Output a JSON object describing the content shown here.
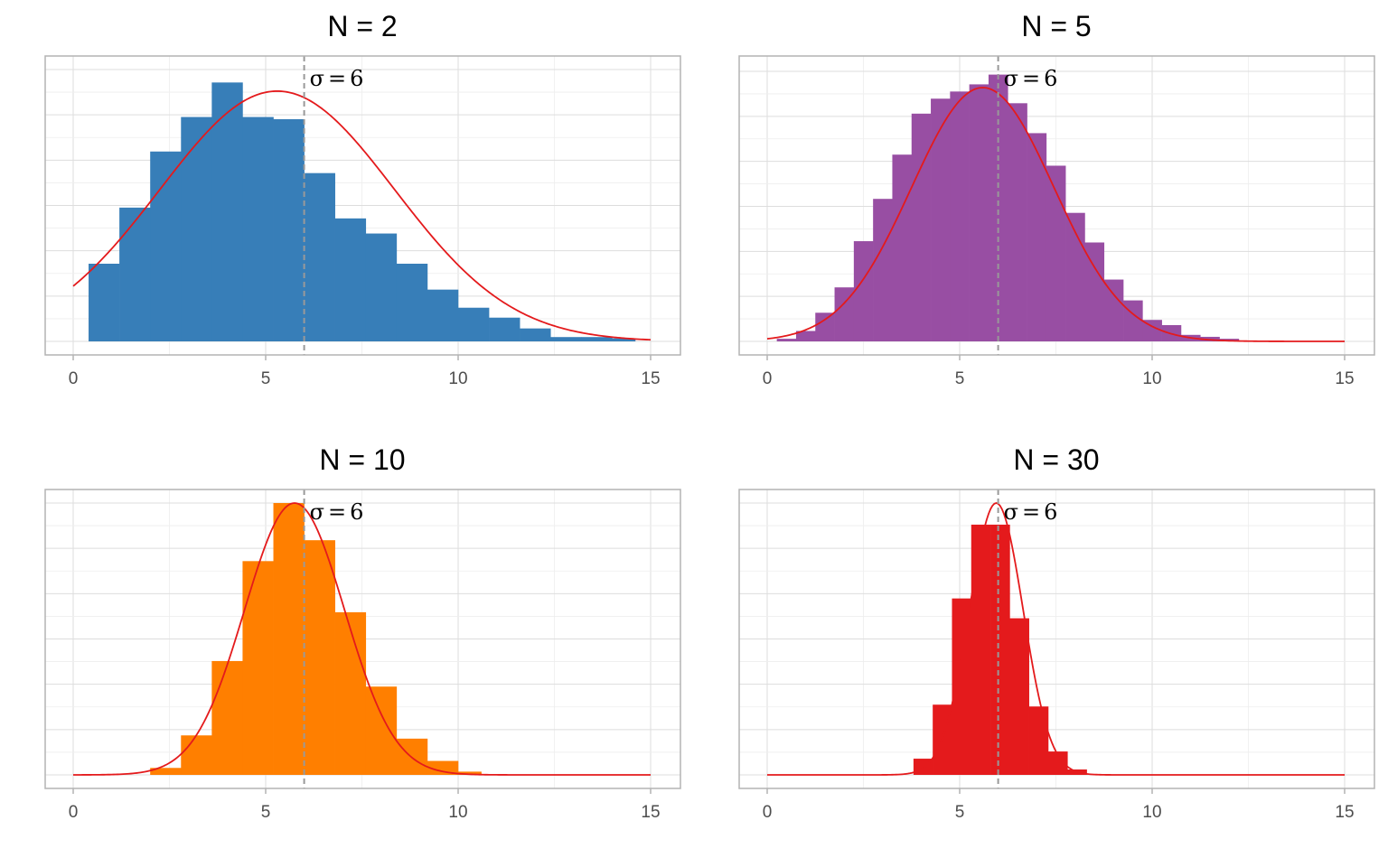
{
  "chart_data": [
    {
      "type": "bar",
      "title": "N = 2",
      "xlim": [
        0,
        15
      ],
      "x_ticks": [
        "0",
        "5",
        "10",
        "15"
      ],
      "x_tick_values": [
        0,
        5,
        10,
        15
      ],
      "ylim": [
        0,
        6.3
      ],
      "bar_color": "#377EB8",
      "curve_color": "#E41A1C",
      "bin_edges": [
        0.4,
        1.2,
        2.0,
        2.8,
        3.6,
        4.4,
        5.2,
        6.0,
        6.8,
        7.6,
        8.4,
        9.2,
        10.0,
        10.8,
        11.6,
        12.4,
        13.2,
        14.0,
        14.6
      ],
      "values": [
        1.8,
        3.1,
        4.4,
        5.2,
        6.0,
        5.2,
        5.15,
        3.9,
        2.85,
        2.5,
        1.8,
        1.2,
        0.78,
        0.55,
        0.3,
        0.1,
        0.1,
        0.07
      ],
      "curve": {
        "mean": 5.3,
        "sd": 3.05,
        "peak": 5.8,
        "xmin": 0,
        "xmax": 15
      },
      "mean_line": 6,
      "annotation": {
        "symbol": "σ",
        "operator": "=",
        "value": "6"
      }
    },
    {
      "type": "bar",
      "title": "N = 5",
      "xlim": [
        0,
        15
      ],
      "x_ticks": [
        "0",
        "5",
        "10",
        "15"
      ],
      "x_tick_values": [
        0,
        5,
        10,
        15
      ],
      "ylim": [
        0,
        8.3
      ],
      "bar_color": "#984EA3",
      "curve_color": "#E41A1C",
      "bin_edges": [
        0.25,
        0.75,
        1.25,
        1.75,
        2.25,
        2.75,
        3.25,
        3.75,
        4.25,
        4.75,
        5.25,
        5.75,
        6.25,
        6.75,
        7.25,
        7.75,
        8.25,
        8.75,
        9.25,
        9.75,
        10.25,
        10.75,
        11.25,
        11.75,
        12.25
      ],
      "values": [
        0.08,
        0.32,
        0.88,
        1.66,
        3.08,
        4.38,
        5.74,
        7.0,
        7.46,
        7.68,
        7.9,
        8.2,
        7.32,
        6.4,
        5.4,
        3.95,
        3.04,
        1.9,
        1.26,
        0.66,
        0.5,
        0.2,
        0.14,
        0.08
      ],
      "curve": {
        "mean": 5.6,
        "sd": 1.85,
        "peak": 7.8,
        "xmin": 0,
        "xmax": 15
      },
      "mean_line": 6,
      "annotation": {
        "symbol": "σ",
        "operator": "=",
        "value": "6"
      }
    },
    {
      "type": "bar",
      "title": "N = 10",
      "xlim": [
        0,
        15
      ],
      "x_ticks": [
        "0",
        "5",
        "10",
        "15"
      ],
      "x_tick_values": [
        0,
        5,
        10,
        15
      ],
      "ylim": [
        0,
        5.85
      ],
      "bar_color": "#FF7F00",
      "curve_color": "#E41A1C",
      "bin_edges": [
        2.0,
        2.8,
        3.6,
        4.4,
        5.2,
        6.0,
        6.8,
        7.6,
        8.4,
        9.2,
        10.0,
        10.6
      ],
      "values": [
        0.15,
        0.85,
        2.45,
        4.6,
        5.85,
        5.05,
        3.5,
        1.9,
        0.78,
        0.3,
        0.07
      ],
      "curve": {
        "mean": 5.75,
        "sd": 1.3,
        "peak": 5.85,
        "xmin": 0,
        "xmax": 15
      },
      "mean_line": 6,
      "annotation": {
        "symbol": "σ",
        "operator": "=",
        "value": "6"
      }
    },
    {
      "type": "bar",
      "title": "N = 30",
      "xlim": [
        0,
        15
      ],
      "x_ticks": [
        "0",
        "5",
        "10",
        "15"
      ],
      "x_tick_values": [
        0,
        5,
        10,
        15
      ],
      "ylim": [
        0,
        7.55
      ],
      "bar_color": "#E41A1C",
      "curve_color": "#E41A1C",
      "bin_edges": [
        3.8,
        4.3,
        4.8,
        5.3,
        5.8,
        6.3,
        6.8,
        7.3,
        7.8,
        8.3
      ],
      "values": [
        0.45,
        1.95,
        4.9,
        6.95,
        6.95,
        4.35,
        1.9,
        0.65,
        0.15
      ],
      "curve": {
        "mean": 5.95,
        "sd": 0.7,
        "peak": 7.55,
        "xmin": 0,
        "xmax": 15
      },
      "mean_line": 6,
      "annotation": {
        "symbol": "σ",
        "operator": "=",
        "value": "6"
      }
    }
  ]
}
